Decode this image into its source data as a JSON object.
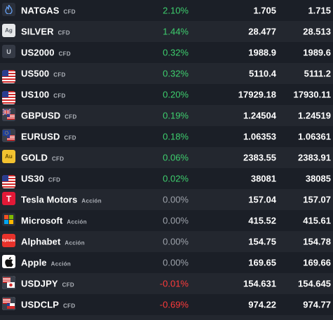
{
  "instruments": [
    {
      "symbol": "NATGAS",
      "type": "CFD",
      "change": "2.10%",
      "trend": "pos",
      "bid": "1.705",
      "ask": "1.715",
      "icon": "flame-icon",
      "icon_text": "",
      "icon_bg": "#2a2f3a",
      "icon_fg": "#6aa8ff"
    },
    {
      "symbol": "SILVER",
      "type": "CFD",
      "change": "1.44%",
      "trend": "pos",
      "bid": "28.477",
      "ask": "28.513",
      "icon": "silver-icon",
      "icon_text": "Ag",
      "icon_bg": "#e6e8ea",
      "icon_fg": "#555b63"
    },
    {
      "symbol": "US2000",
      "type": "CFD",
      "change": "0.32%",
      "trend": "pos",
      "bid": "1988.9",
      "ask": "1989.6",
      "icon": "index-u-icon",
      "icon_text": "U",
      "icon_bg": "#353a45",
      "icon_fg": "#c8ccd2"
    },
    {
      "symbol": "US500",
      "type": "CFD",
      "change": "0.32%",
      "trend": "pos",
      "bid": "5110.4",
      "ask": "5111.2",
      "icon": "us-flag-icon",
      "icon_text": "",
      "icon_bg": "",
      "icon_fg": ""
    },
    {
      "symbol": "US100",
      "type": "CFD",
      "change": "0.20%",
      "trend": "pos",
      "bid": "17929.18",
      "ask": "17930.11",
      "icon": "us-flag-icon",
      "icon_text": "",
      "icon_bg": "",
      "icon_fg": ""
    },
    {
      "symbol": "GBPUSD",
      "type": "CFD",
      "change": "0.19%",
      "trend": "pos",
      "bid": "1.24504",
      "ask": "1.24519",
      "icon": "gb-us-flag-icon",
      "icon_text": "",
      "icon_bg": "#2b3d8f",
      "icon_fg": "#ffffff"
    },
    {
      "symbol": "EURUSD",
      "type": "CFD",
      "change": "0.18%",
      "trend": "pos",
      "bid": "1.06353",
      "ask": "1.06361",
      "icon": "eu-us-flag-icon",
      "icon_text": "",
      "icon_bg": "#1f3f9a",
      "icon_fg": "#f2c230"
    },
    {
      "symbol": "GOLD",
      "type": "CFD",
      "change": "0.06%",
      "trend": "pos",
      "bid": "2383.55",
      "ask": "2383.91",
      "icon": "gold-icon",
      "icon_text": "Au",
      "icon_bg": "#f2c230",
      "icon_fg": "#6b4f00"
    },
    {
      "symbol": "US30",
      "type": "CFD",
      "change": "0.02%",
      "trend": "pos",
      "bid": "38081",
      "ask": "38085",
      "icon": "us-flag-icon",
      "icon_text": "",
      "icon_bg": "",
      "icon_fg": ""
    },
    {
      "symbol": "Tesla Motors",
      "type": "Acción",
      "change": "0.00%",
      "trend": "zero",
      "bid": "157.04",
      "ask": "157.07",
      "icon": "tesla-logo-icon",
      "icon_text": "T",
      "icon_bg": "#e31937",
      "icon_fg": "#ffffff"
    },
    {
      "symbol": "Microsoft",
      "type": "Acción",
      "change": "0.00%",
      "trend": "zero",
      "bid": "415.52",
      "ask": "415.61",
      "icon": "microsoft-logo-icon",
      "icon_text": "",
      "icon_bg": "#2a2f3a",
      "icon_fg": ""
    },
    {
      "symbol": "Alphabet",
      "type": "Acción",
      "change": "0.00%",
      "trend": "zero",
      "bid": "154.75",
      "ask": "154.78",
      "icon": "alphabet-logo-icon",
      "icon_text": "Alphabet",
      "icon_bg": "#e8322b",
      "icon_fg": "#ffffff"
    },
    {
      "symbol": "Apple",
      "type": "Acción",
      "change": "0.00%",
      "trend": "zero",
      "bid": "169.65",
      "ask": "169.66",
      "icon": "apple-logo-icon",
      "icon_text": "",
      "icon_bg": "#ffffff",
      "icon_fg": "#111111"
    },
    {
      "symbol": "USDJPY",
      "type": "CFD",
      "change": "-0.01%",
      "trend": "neg",
      "bid": "154.631",
      "ask": "154.645",
      "icon": "us-jp-flag-icon",
      "icon_text": "",
      "icon_bg": "#ffffff",
      "icon_fg": "#d22a2a"
    },
    {
      "symbol": "USDCLP",
      "type": "CFD",
      "change": "-0.69%",
      "trend": "neg",
      "bid": "974.22",
      "ask": "974.77",
      "icon": "us-cl-flag-icon",
      "icon_text": "",
      "icon_bg": "#ffffff",
      "icon_fg": "#d22a2a"
    }
  ],
  "colors": {
    "positive": "#3ecf6e",
    "negative": "#ff3b3b",
    "neutral": "#9ea3ab",
    "row_odd": "#1b1f27",
    "row_even": "#23272f"
  }
}
